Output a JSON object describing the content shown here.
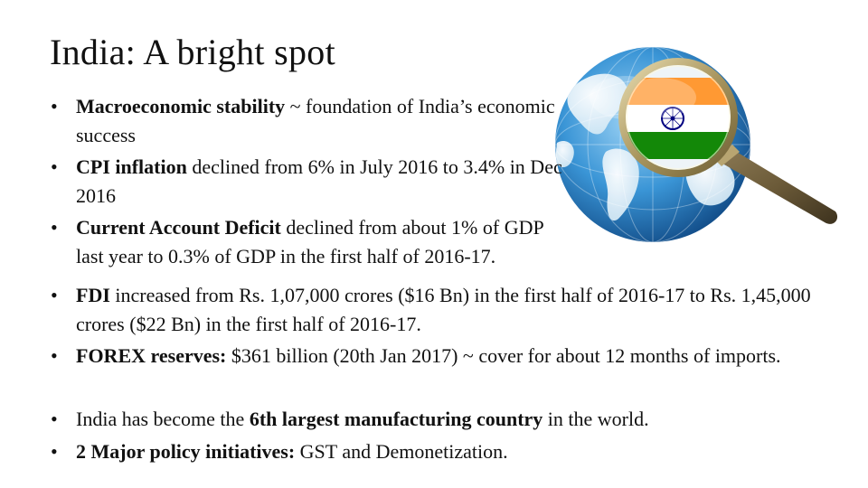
{
  "title": "India: A bright spot",
  "bullets": [
    {
      "bold": "Macroeconomic stability",
      "text": " ~ foundation of India’s economic success"
    },
    {
      "bold": "CPI inflation",
      "text": " declined from 6% in July 2016 to 3.4% in Dec 2016"
    },
    {
      "bold": "Current Account Deficit",
      "text": " declined from about 1% of GDP last year to 0.3% of GDP in the first half of 2016-17."
    },
    {
      "bold": "FDI",
      "text": " increased from Rs. 1,07,000 crores ($16 Bn) in the first half of 2016-17 to Rs. 1,45,000 crores ($22 Bn) in the first half of 2016-17."
    },
    {
      "bold": "FOREX reserves:",
      "text": " $361 billion (20th Jan 2017) ~ cover for about 12 months of imports."
    },
    {
      "pre": "India has become the ",
      "bold": "6th largest manufacturing country",
      "text": " in the world."
    },
    {
      "bold": "2 Major policy initiatives:",
      "text": " GST and Demonetization."
    }
  ],
  "bullet_symbol": "•",
  "image": {
    "icon": "globe-magnifier-india-flag-icon",
    "colors": {
      "saffron": "#FF9933",
      "white": "#FFFFFF",
      "green": "#138808",
      "chakra": "#000080",
      "ocean": "#2E8FD0"
    }
  }
}
